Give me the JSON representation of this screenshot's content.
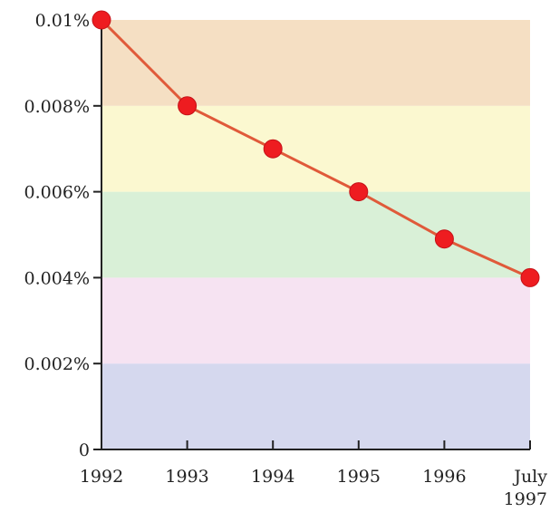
{
  "chart_data": {
    "type": "line",
    "title": "",
    "xlabel": "",
    "ylabel": "",
    "categories": [
      "1992",
      "1993",
      "1994",
      "1995",
      "1996",
      "July 1997"
    ],
    "x_tick_labels": [
      [
        "1992"
      ],
      [
        "1993"
      ],
      [
        "1994"
      ],
      [
        "1995"
      ],
      [
        "1996"
      ],
      [
        "July",
        "1997"
      ]
    ],
    "y_ticks": [
      0,
      0.002,
      0.004,
      0.006,
      0.008,
      0.01
    ],
    "y_tick_labels": [
      "0",
      "0.002%",
      "0.004%",
      "0.006%",
      "0.008%",
      "0.01%"
    ],
    "ylim": [
      0,
      0.01
    ],
    "grid": false,
    "series": [
      {
        "values": [
          0.01,
          0.008,
          0.007,
          0.006,
          0.0049,
          0.004
        ]
      }
    ],
    "background_bands": [
      {
        "from": 0,
        "to": 0.002,
        "color": "#d5d8ee"
      },
      {
        "from": 0.002,
        "to": 0.004,
        "color": "#f6e3f2"
      },
      {
        "from": 0.004,
        "to": 0.006,
        "color": "#d9f0d7"
      },
      {
        "from": 0.006,
        "to": 0.008,
        "color": "#fbf8d0"
      },
      {
        "from": 0.008,
        "to": 0.01,
        "color": "#f5dfc3"
      }
    ],
    "colors": {
      "line": "#e05a3a",
      "marker": "#ee1c20",
      "axis": "#222222"
    }
  }
}
